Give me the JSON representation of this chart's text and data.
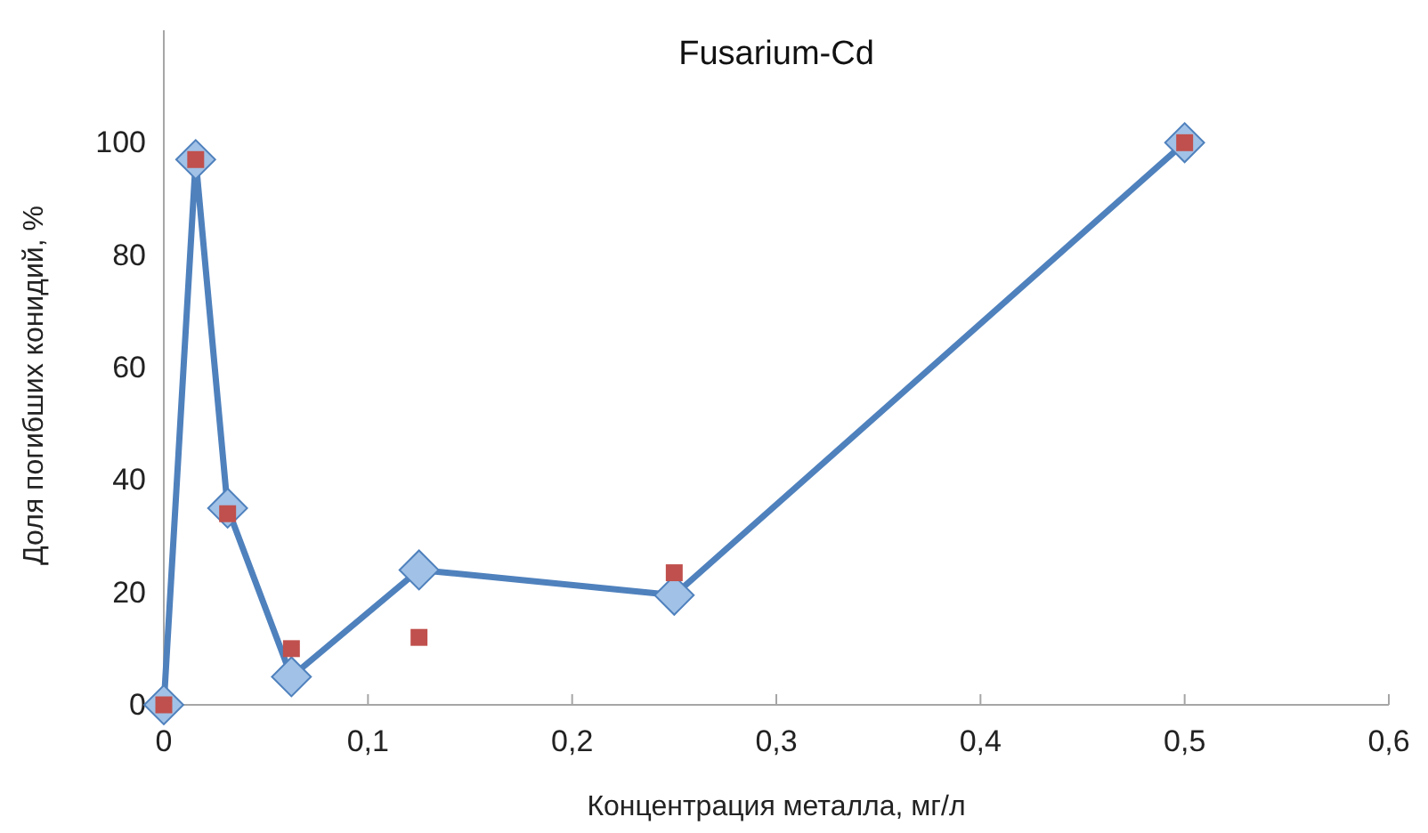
{
  "chart_data": {
    "type": "line",
    "title": "Fusarium-Cd",
    "xlabel": "Концентрация металла, мг/л",
    "ylabel": "Доля погибших конидий, %",
    "x": [
      0,
      0.015625,
      0.03125,
      0.0625,
      0.125,
      0.25,
      0.5
    ],
    "series": [
      {
        "color": "#4f81bd",
        "marker": "diamond",
        "values": [
          0,
          97,
          35,
          5,
          24,
          19.5,
          100
        ]
      },
      {
        "type": "scatter",
        "color": "#c0504d",
        "marker": "square",
        "values": [
          0,
          97,
          34,
          10,
          12,
          23.5,
          100
        ]
      }
    ],
    "xlim": [
      0,
      0.6
    ],
    "xticks": [
      {
        "value": 0,
        "label": "0"
      },
      {
        "value": 0.1,
        "label": "0,1"
      },
      {
        "value": 0.2,
        "label": "0,2"
      },
      {
        "value": 0.3,
        "label": "0,3"
      },
      {
        "value": 0.4,
        "label": "0,4"
      },
      {
        "value": 0.5,
        "label": "0,5"
      },
      {
        "value": 0.6,
        "label": "0,6"
      }
    ],
    "ylim": [
      0,
      120
    ],
    "yticks": [
      0,
      20,
      40,
      60,
      80,
      100
    ],
    "grid": false
  }
}
